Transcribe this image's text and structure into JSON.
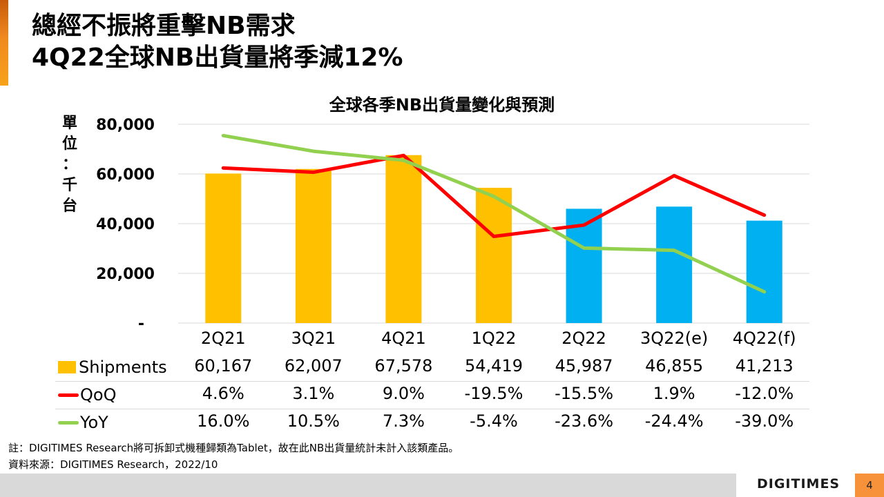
{
  "slide": {
    "title_line1": "總經不振將重擊NB需求",
    "title_line2": "4Q22全球NB出貨量將季減12%",
    "note": "註：DIGITIMES Research將可拆卸式機種歸類為Tablet，故在此NB出貨量統計未計入該類產品。",
    "source": "資料來源：DIGITIMES Research，2022/10",
    "logo": "DIGITIMES",
    "page_number": "4",
    "colors": {
      "accent": "#f08a1e",
      "page_badge": "#f7923a",
      "footer_gray": "#d9d9d9"
    }
  },
  "chart_data": {
    "type": "bar",
    "title": "全球各季NB出貨量變化與預測",
    "ylabel": "單位：千台",
    "ylabel_chars": [
      "單",
      "位",
      "：",
      "千",
      "台"
    ],
    "xlabel": "",
    "categories": [
      "2Q21",
      "3Q21",
      "4Q21",
      "1Q22",
      "2Q22",
      "3Q22(e)",
      "4Q22(f)"
    ],
    "ylim": [
      0,
      80000
    ],
    "yticks": [
      0,
      20000,
      40000,
      60000,
      80000
    ],
    "ytick_labels": [
      "-",
      "20,000",
      "40,000",
      "60,000",
      "80,000"
    ],
    "y2lim": [
      -50,
      20
    ],
    "grid": true,
    "series": [
      {
        "name": "Shipments",
        "type": "bar",
        "values": [
          60167,
          62007,
          67578,
          54419,
          45987,
          46855,
          41213
        ],
        "display": [
          "60,167",
          "62,007",
          "67,578",
          "54,419",
          "45,987",
          "46,855",
          "41,213"
        ],
        "colors": [
          "#ffc000",
          "#ffc000",
          "#ffc000",
          "#ffc000",
          "#00b0f0",
          "#00b0f0",
          "#00b0f0"
        ],
        "legend_color": "#ffc000"
      },
      {
        "name": "QoQ",
        "type": "line",
        "axis": "secondary",
        "values": [
          4.6,
          3.1,
          9.0,
          -19.5,
          -15.5,
          1.9,
          -12.0
        ],
        "display": [
          "4.6%",
          "3.1%",
          "9.0%",
          "-19.5%",
          "-15.5%",
          "1.9%",
          "-12.0%"
        ],
        "color": "#ff0000"
      },
      {
        "name": "YoY",
        "type": "line",
        "axis": "secondary",
        "values": [
          16.0,
          10.5,
          7.3,
          -5.4,
          -23.6,
          -24.4,
          -39.0
        ],
        "display": [
          "16.0%",
          "10.5%",
          "7.3%",
          "-5.4%",
          "-23.6%",
          "-24.4%",
          "-39.0%"
        ],
        "color": "#92d050"
      }
    ],
    "legend": "data-table-below"
  }
}
